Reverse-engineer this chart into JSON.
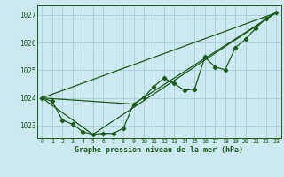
{
  "title": "Graphe pression niveau de la mer (hPa)",
  "bg_color": "#cce8f0",
  "grid_color": "#aaccd8",
  "line_color": "#1a5c1a",
  "xlim": [
    -0.5,
    23.5
  ],
  "ylim": [
    1022.55,
    1027.35
  ],
  "yticks": [
    1023,
    1024,
    1025,
    1026,
    1027
  ],
  "xticks": [
    0,
    1,
    2,
    3,
    4,
    5,
    6,
    7,
    8,
    9,
    10,
    11,
    12,
    13,
    14,
    15,
    16,
    17,
    18,
    19,
    20,
    21,
    22,
    23
  ],
  "series1_x": [
    0,
    1,
    2,
    3,
    4,
    5,
    6,
    7,
    8,
    9,
    10,
    11,
    12,
    13,
    14,
    15,
    16,
    17,
    18,
    19,
    20,
    21,
    22,
    23
  ],
  "series1_y": [
    1024.0,
    1023.88,
    1023.2,
    1023.05,
    1022.78,
    1022.68,
    1022.72,
    1022.72,
    1022.9,
    1023.78,
    1024.02,
    1024.42,
    1024.72,
    1024.52,
    1024.28,
    1024.32,
    1025.48,
    1025.12,
    1025.02,
    1025.82,
    1026.12,
    1026.52,
    1026.88,
    1027.08
  ],
  "line1_x": [
    0,
    23
  ],
  "line1_y": [
    1024.0,
    1027.08
  ],
  "line2_x": [
    0,
    5,
    23
  ],
  "line2_y": [
    1024.0,
    1022.68,
    1027.08
  ],
  "line3_x": [
    0,
    9,
    23
  ],
  "line3_y": [
    1024.0,
    1023.78,
    1027.08
  ]
}
